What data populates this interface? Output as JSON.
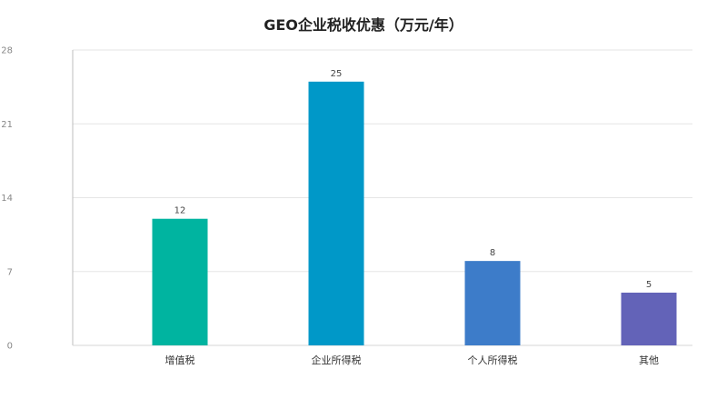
{
  "chart_data": {
    "type": "bar",
    "title": "GEO企业税收优惠（万元/年）",
    "categories": [
      "增值税",
      "企业所得税",
      "个人所得税",
      "其他"
    ],
    "values": [
      12,
      25,
      8,
      5
    ],
    "colors": [
      "#00b4a0",
      "#0098c8",
      "#3d7cc9",
      "#6363b8"
    ],
    "ylim": [
      0,
      28
    ],
    "yticks": [
      0,
      7,
      14,
      21,
      28
    ],
    "grid": true,
    "legend": "none",
    "xlabel": "",
    "ylabel": ""
  }
}
